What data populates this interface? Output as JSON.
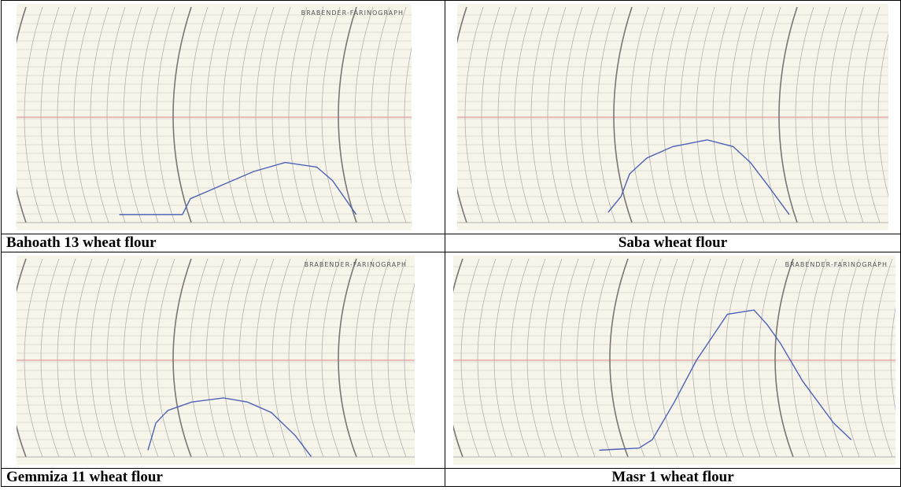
{
  "figure": {
    "panels": [
      {
        "caption": "Bahoath 13 wheat flour",
        "header": "BRABENDER-FARINOGRAPH"
      },
      {
        "caption": "Saba wheat flour"
      },
      {
        "caption": "Gemmiza 11 wheat flour",
        "header": "BRABENDER-FARINOGRAPH"
      },
      {
        "caption": "Masr 1 wheat flour",
        "header": "BRABENDER-FARINOGRAPH"
      }
    ]
  }
}
